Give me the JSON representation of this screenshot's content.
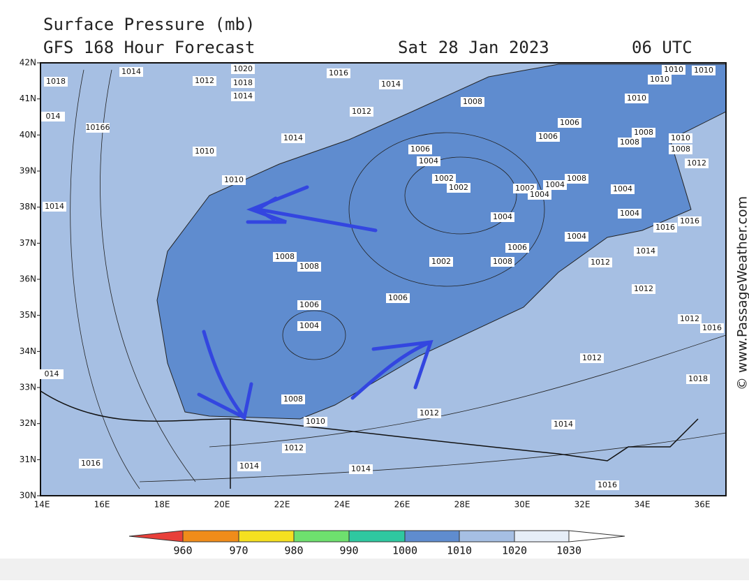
{
  "header": {
    "title": "Surface Pressure (mb)",
    "subtitle": "GFS 168 Hour Forecast",
    "date": "Sat 28 Jan 2023",
    "time": "06 UTC"
  },
  "map": {
    "lat_labels": [
      "42N",
      "41N",
      "40N",
      "39N",
      "38N",
      "37N",
      "36N",
      "35N",
      "34N",
      "33N",
      "32N",
      "31N",
      "30N"
    ],
    "lon_labels": [
      "14E",
      "16E",
      "18E",
      "20E",
      "22E",
      "24E",
      "26E",
      "28E",
      "30E",
      "32E",
      "34E",
      "36E"
    ],
    "isobar_labels": [
      "1018",
      "1014",
      "1020",
      "1012",
      "1018",
      "1014",
      "1016",
      "1014",
      "1012",
      "1008",
      "1010",
      "1010",
      "1010",
      "1010",
      "1006",
      "1006",
      "1008",
      "1008",
      "1010",
      "1008",
      "1012",
      "014",
      "10166",
      "1014",
      "1010",
      "1006",
      "1004",
      "1010",
      "1002",
      "1002",
      "1002",
      "1004",
      "1008",
      "1004",
      "1004",
      "1004",
      "1004",
      "1014",
      "1016",
      "1016",
      "1004",
      "1014",
      "1006",
      "1008",
      "1008",
      "1002",
      "1008",
      "1012",
      "1012",
      "1006",
      "1006",
      "1004",
      "1012",
      "1016",
      "1012",
      "014",
      "1008",
      "1012",
      "1010",
      "1014",
      "1012",
      "1016",
      "1014",
      "1014",
      "1016",
      "1018"
    ]
  },
  "colorbar": {
    "labels": [
      960,
      970,
      980,
      990,
      1000,
      1010,
      1020,
      1030
    ],
    "colors": [
      "#e8403a",
      "#f08c1a",
      "#f5e020",
      "#6ee06e",
      "#2fc8a0",
      "#5f8ccf",
      "#a6bfe3",
      "#e6eef8",
      "#ffffff"
    ]
  },
  "credit": "© www.PassageWeather.com"
}
